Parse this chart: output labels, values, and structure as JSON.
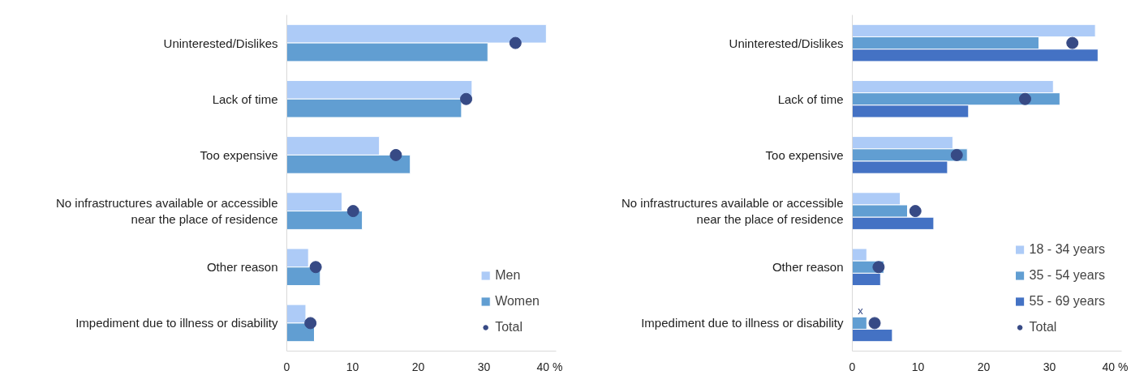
{
  "chart_data": [
    {
      "type": "bar",
      "orientation": "horizontal",
      "categories": [
        "Uninterested/Dislikes",
        "Lack of time",
        "Too expensive",
        "No infrastructures available or accessible near the place of residence",
        "Other reason",
        "Impediment due to illness or disability"
      ],
      "series": [
        {
          "name": "Men",
          "color": "#adcbf7",
          "values": [
            39.5,
            28.2,
            14.1,
            8.4,
            3.3,
            2.9
          ]
        },
        {
          "name": "Women",
          "color": "#619ed2",
          "values": [
            30.6,
            26.6,
            18.8,
            11.5,
            5.1,
            4.2
          ]
        },
        {
          "name": "Total",
          "type": "scatter",
          "color": "#374a85",
          "values": [
            34.8,
            27.3,
            16.6,
            10.1,
            4.4,
            3.6
          ]
        }
      ],
      "xlim": [
        0,
        41
      ],
      "xticks": [
        0,
        10,
        20,
        30,
        {
          "value": 40,
          "label": "40 %"
        }
      ],
      "grid": false,
      "legend": "bottom right",
      "marker": "circle"
    },
    {
      "type": "bar",
      "orientation": "horizontal",
      "categories": [
        "Uninterested/Dislikes",
        "Lack of time",
        "Too expensive",
        "No infrastructures available or accessible near the place of residence",
        "Other reason",
        "Impediment due to illness or disability"
      ],
      "series": [
        {
          "name": "18 - 34 years",
          "color": "#adcbf7",
          "values": [
            37.0,
            30.6,
            15.3,
            7.3,
            2.2,
            null
          ]
        },
        {
          "name": "35 - 54 years",
          "color": "#619ed2",
          "values": [
            28.4,
            31.6,
            17.5,
            8.4,
            4.8,
            2.2
          ]
        },
        {
          "name": "55 - 69 years",
          "color": "#4472c4",
          "values": [
            37.4,
            17.7,
            14.5,
            12.4,
            4.3,
            6.1
          ]
        },
        {
          "name": "Total",
          "type": "scatter",
          "color": "#374a85",
          "values": [
            33.5,
            26.3,
            15.9,
            9.6,
            4.0,
            3.4
          ]
        }
      ],
      "annotations": [
        "x"
      ],
      "xlim": [
        0,
        41
      ],
      "xticks": [
        0,
        10,
        20,
        30,
        {
          "value": 40,
          "label": "40 %"
        }
      ],
      "grid": false,
      "legend": "bottom right",
      "marker": "circle"
    }
  ]
}
